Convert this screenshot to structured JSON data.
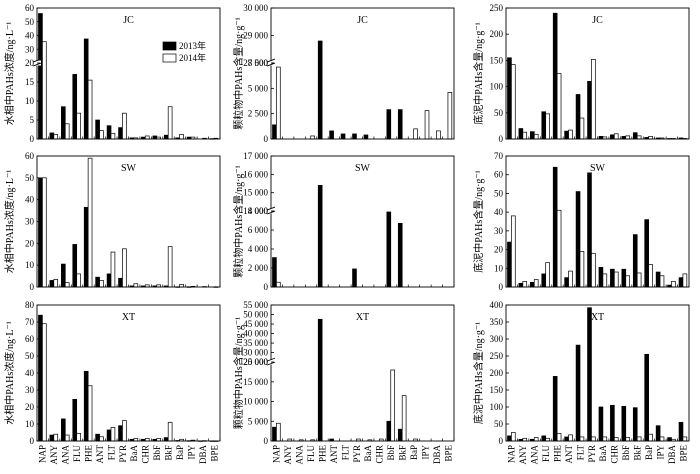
{
  "chart_data": [
    {
      "id": "jc_water",
      "type": "bar",
      "title": "JC",
      "ylabel": "水相中PAHs浓度/ng·L⁻¹",
      "categories": [
        "NAP",
        "ANY",
        "ANA",
        "FLU",
        "PHE",
        "ANT",
        "FLT",
        "PYR",
        "BaA",
        "CHR",
        "BbF",
        "BkF",
        "BaP",
        "IPY",
        "DBA",
        "BPE"
      ],
      "show_xticklabels": false,
      "axis_break": {
        "low": [
          0,
          20
        ],
        "high": [
          20,
          60
        ]
      },
      "yticks": [
        0,
        5,
        10,
        15,
        20,
        30,
        40,
        50,
        60
      ],
      "series": [
        {
          "name": "2013年",
          "color": "#000000",
          "values": [
            56,
            1.6,
            8.5,
            17,
            37.5,
            5,
            3.5,
            3,
            0.3,
            0.5,
            0.8,
            1,
            0.3,
            0.5,
            0,
            0.1
          ]
        },
        {
          "name": "2014年",
          "color": "#ffffff",
          "values": [
            35.5,
            1.2,
            4,
            6.8,
            15.5,
            2.2,
            1.5,
            6.8,
            0.3,
            0.8,
            0.5,
            8.5,
            1.2,
            0.5,
            0.2,
            0.2
          ]
        }
      ],
      "legend": {
        "position": "top-right"
      }
    },
    {
      "id": "jc_particle",
      "type": "bar",
      "title": "JC",
      "ylabel": "颗粒物中PAHs含量/ng·g⁻¹",
      "categories": [
        "NAP",
        "ANY",
        "ANA",
        "FLU",
        "PHE",
        "ANT",
        "FLT",
        "PYR",
        "BaA",
        "CHR",
        "BbF",
        "BkF",
        "BaP",
        "IPY",
        "DBA",
        "BPE"
      ],
      "show_xticklabels": false,
      "axis_break": {
        "low": [
          0,
          7500
        ],
        "high": [
          28000,
          30000
        ]
      },
      "yticks": [
        0,
        2500,
        5000,
        7500,
        28000,
        29000,
        30000
      ],
      "ytick_labels": [
        "0",
        "2 500",
        "5 000",
        "7 500",
        "28 000",
        "29 000",
        "30 000"
      ],
      "series": [
        {
          "name": "2013年",
          "color": "#000000",
          "values": [
            1400,
            0,
            0,
            0,
            28800,
            800,
            500,
            500,
            400,
            0,
            2900,
            2900,
            0,
            0,
            0,
            0
          ]
        },
        {
          "name": "2014年",
          "color": "#ffffff",
          "values": [
            7100,
            0,
            0,
            300,
            0,
            0,
            0,
            0,
            0,
            0,
            0,
            0,
            1000,
            2800,
            800,
            4600
          ]
        }
      ]
    },
    {
      "id": "jc_sediment",
      "type": "bar",
      "title": "JC",
      "ylabel": "底泥中PAHs含量/ng·g⁻¹",
      "categories": [
        "NAP",
        "ANY",
        "ANA",
        "FLU",
        "PHE",
        "ANT",
        "FLT",
        "PYR",
        "BaA",
        "CHR",
        "BbF",
        "BkF",
        "BaP",
        "IPY",
        "DBA",
        "BPE"
      ],
      "show_xticklabels": false,
      "yticks": [
        0,
        50,
        100,
        150,
        200,
        250
      ],
      "ylim": [
        0,
        250
      ],
      "series": [
        {
          "name": "2013年",
          "color": "#000000",
          "values": [
            155,
            20,
            14,
            52,
            240,
            15,
            85,
            110,
            5,
            8,
            5,
            12,
            3,
            2,
            1,
            2
          ]
        },
        {
          "name": "2014年",
          "color": "#ffffff",
          "values": [
            142,
            13,
            9,
            48,
            125,
            17,
            40,
            152,
            4,
            10,
            6,
            6,
            5,
            2,
            1,
            1
          ]
        }
      ]
    },
    {
      "id": "sw_water",
      "type": "bar",
      "title": "SW",
      "ylabel": "水相中PAHs浓度/ng·L⁻¹",
      "categories": [
        "NAP",
        "ANY",
        "ANA",
        "FLU",
        "PHE",
        "ANT",
        "FLT",
        "PYR",
        "BaA",
        "CHR",
        "BbF",
        "BkF",
        "BaP",
        "IPY",
        "DBA",
        "BPE"
      ],
      "show_xticklabels": false,
      "yticks": [
        0,
        10,
        20,
        30,
        40,
        50,
        60
      ],
      "ylim": [
        0,
        60
      ],
      "series": [
        {
          "name": "2013年",
          "color": "#000000",
          "values": [
            50,
            3,
            10.5,
            19.5,
            36.5,
            4.5,
            6,
            4,
            0.5,
            0.5,
            0.5,
            0.5,
            0.1,
            0.1,
            0,
            0
          ]
        },
        {
          "name": "2014年",
          "color": "#ffffff",
          "values": [
            50,
            3.5,
            2,
            6,
            59,
            3,
            16,
            17.5,
            1.5,
            1,
            1,
            18.5,
            1.2,
            0.3,
            0.2,
            0.1
          ]
        }
      ]
    },
    {
      "id": "sw_particle",
      "type": "bar",
      "title": "SW",
      "ylabel": "颗粒物中PAHs含量/ng·g⁻¹",
      "categories": [
        "NAP",
        "ANY",
        "ANA",
        "FLU",
        "PHE",
        "ANT",
        "FLT",
        "PYR",
        "BaA",
        "CHR",
        "BbF",
        "BkF",
        "BaP",
        "IPY",
        "DBA",
        "BPE"
      ],
      "show_xticklabels": false,
      "axis_break": {
        "low": [
          0,
          8000
        ],
        "high": [
          14000,
          17000
        ]
      },
      "yticks": [
        0,
        2000,
        4000,
        6000,
        8000,
        14000,
        15000,
        16000,
        17000
      ],
      "ytick_labels": [
        "0",
        "2 000",
        "4 000",
        "6 000",
        "8 000",
        "14 000",
        "15 000",
        "16 000",
        "17 000"
      ],
      "series": [
        {
          "name": "2013年",
          "color": "#000000",
          "values": [
            3100,
            0,
            0,
            0,
            15400,
            0,
            0,
            1900,
            0,
            0,
            7900,
            6700,
            0,
            0,
            0,
            0
          ]
        },
        {
          "name": "2014年",
          "color": "#ffffff",
          "values": [
            500,
            0,
            0,
            0,
            0,
            0,
            0,
            0,
            0,
            0,
            0,
            0,
            0,
            0,
            0,
            0
          ]
        }
      ]
    },
    {
      "id": "sw_sediment",
      "type": "bar",
      "title": "SW",
      "ylabel": "底泥中PAHs含量/ng·g⁻¹",
      "categories": [
        "NAP",
        "ANY",
        "ANA",
        "FLU",
        "PHE",
        "ANT",
        "FLT",
        "PYR",
        "BaA",
        "CHR",
        "BbF",
        "BkF",
        "BaP",
        "IPY",
        "DBA",
        "BPE"
      ],
      "show_xticklabels": false,
      "yticks": [
        0,
        10,
        20,
        30,
        40,
        50,
        60,
        70
      ],
      "ylim": [
        0,
        70
      ],
      "series": [
        {
          "name": "2013年",
          "color": "#000000",
          "values": [
            24,
            2,
            2.5,
            7,
            64,
            5,
            51,
            61,
            10.5,
            9.5,
            9.5,
            28,
            36,
            8,
            1,
            5
          ]
        },
        {
          "name": "2014年",
          "color": "#ffffff",
          "values": [
            38,
            3,
            4,
            13,
            41,
            8.5,
            19,
            18,
            7,
            8,
            6,
            7.5,
            12,
            6,
            3,
            7
          ]
        }
      ]
    },
    {
      "id": "xt_water",
      "type": "bar",
      "title": "XT",
      "ylabel": "水相中PAHs浓度/ng·L⁻¹",
      "categories": [
        "NAP",
        "ANY",
        "ANA",
        "FLU",
        "PHE",
        "ANT",
        "FLT",
        "PYR",
        "BaA",
        "CHR",
        "BbF",
        "BkF",
        "BaP",
        "IPY",
        "DBA",
        "BPE"
      ],
      "yticks": [
        0,
        10,
        20,
        30,
        40,
        50,
        60,
        70,
        80
      ],
      "ylim": [
        0,
        80
      ],
      "series": [
        {
          "name": "2013年",
          "color": "#000000",
          "values": [
            74,
            3.5,
            13,
            24.5,
            41,
            4,
            6.5,
            9,
            1,
            1,
            1,
            2,
            0.3,
            0.2,
            0.1,
            0.1
          ]
        },
        {
          "name": "2014年",
          "color": "#ffffff",
          "values": [
            69,
            4,
            3.5,
            4.5,
            32.5,
            2.5,
            8,
            12,
            1.5,
            1.5,
            1.5,
            11,
            1,
            0.5,
            0.2,
            0.1
          ]
        }
      ]
    },
    {
      "id": "xt_particle",
      "type": "bar",
      "title": "XT",
      "ylabel": "颗粒物中PAHs含量/ng·g⁻¹",
      "categories": [
        "NAP",
        "ANY",
        "ANA",
        "FLU",
        "PHE",
        "ANT",
        "FLT",
        "PYR",
        "BaA",
        "CHR",
        "BbF",
        "BkF",
        "BaP",
        "IPY",
        "DBA",
        "BPE"
      ],
      "axis_break": {
        "low": [
          0,
          20000
        ],
        "high": [
          25000,
          55000
        ]
      },
      "yticks": [
        0,
        5000,
        10000,
        15000,
        20000,
        25000,
        30000,
        35000,
        40000,
        45000,
        50000,
        55000
      ],
      "ytick_labels": [
        "0",
        "5 000",
        "10 000",
        "15 000",
        "20 000",
        "25 000",
        "30 000",
        "35 000",
        "40 000",
        "45 000",
        "50 000",
        "55 000"
      ],
      "series": [
        {
          "name": "2013年",
          "color": "#000000",
          "values": [
            3500,
            0,
            0,
            0,
            47500,
            500,
            0,
            0,
            0,
            0,
            5000,
            3000,
            0,
            0,
            0,
            0
          ]
        },
        {
          "name": "2014年",
          "color": "#ffffff",
          "values": [
            4500,
            500,
            300,
            300,
            0,
            0,
            0,
            500,
            300,
            500,
            18000,
            11500,
            500,
            0,
            0,
            0
          ]
        }
      ]
    },
    {
      "id": "xt_sediment",
      "type": "bar",
      "title": "XT",
      "ylabel": "底泥中PAHs含量/ng·g⁻¹",
      "categories": [
        "NAP",
        "ANY",
        "ANA",
        "FLU",
        "PHE",
        "ANT",
        "FLT",
        "PYR",
        "BaA",
        "CHR",
        "BbF",
        "BkF",
        "BaP",
        "IPY",
        "DBA",
        "BPE"
      ],
      "yticks": [
        0,
        50,
        100,
        150,
        200,
        250,
        300,
        350,
        400
      ],
      "ylim": [
        0,
        400
      ],
      "series": [
        {
          "name": "2013年",
          "color": "#000000",
          "values": [
            15,
            5,
            5,
            15,
            190,
            12,
            282,
            392,
            100,
            105,
            102,
            98,
            255,
            45,
            10,
            55
          ]
        },
        {
          "name": "2014年",
          "color": "#ffffff",
          "values": [
            25,
            8,
            10,
            8,
            22,
            18,
            12,
            12,
            12,
            10,
            10,
            12,
            20,
            12,
            5,
            12
          ]
        }
      ]
    }
  ]
}
